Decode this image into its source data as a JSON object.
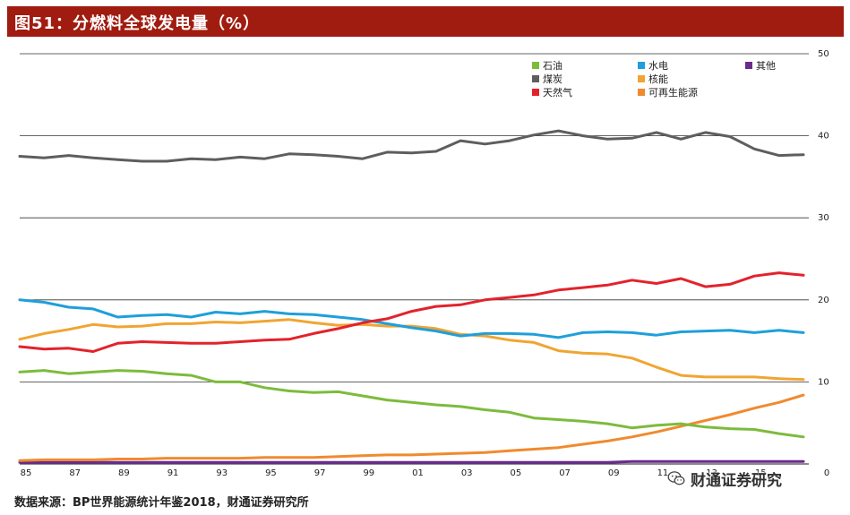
{
  "header": {
    "title": "图51：分燃料全球发电量（%）"
  },
  "source": "数据来源：BP世界能源统计年鉴2018，财通证券研究所",
  "watermark": "财通证券研究",
  "chart_data": {
    "type": "line",
    "title": "图51：分燃料全球发电量（%）",
    "xlabel": "",
    "ylabel": "",
    "ylim": [
      0,
      50
    ],
    "yticks": [
      0,
      10,
      20,
      30,
      40,
      50
    ],
    "y_axis_side": "right",
    "grid": "horizontal",
    "legend_position": "top-right",
    "x": [
      1985,
      1986,
      1987,
      1988,
      1989,
      1990,
      1991,
      1992,
      1993,
      1994,
      1995,
      1996,
      1997,
      1998,
      1999,
      2000,
      2001,
      2002,
      2003,
      2004,
      2005,
      2006,
      2007,
      2008,
      2009,
      2010,
      2011,
      2012,
      2013,
      2014,
      2015,
      2016,
      2017
    ],
    "xtick_labels": [
      "85",
      "87",
      "89",
      "91",
      "93",
      "95",
      "97",
      "99",
      "01",
      "03",
      "05",
      "07",
      "09",
      "11",
      "13",
      "15",
      "0"
    ],
    "series": [
      {
        "name": "石油",
        "color": "#7dbb3c",
        "values": [
          11.2,
          11.4,
          11.0,
          11.2,
          11.4,
          11.3,
          11.0,
          10.8,
          10.0,
          10.0,
          9.3,
          8.9,
          8.7,
          8.8,
          8.3,
          7.8,
          7.5,
          7.2,
          7.0,
          6.6,
          6.3,
          5.6,
          5.4,
          5.2,
          4.9,
          4.4,
          4.7,
          4.9,
          4.5,
          4.3,
          4.2,
          3.7,
          3.3
        ]
      },
      {
        "name": "煤炭",
        "color": "#5e5e5e",
        "values": [
          37.5,
          37.3,
          37.6,
          37.3,
          37.1,
          36.9,
          36.9,
          37.2,
          37.1,
          37.4,
          37.2,
          37.8,
          37.7,
          37.5,
          37.2,
          38.0,
          37.9,
          38.1,
          39.4,
          39.0,
          39.4,
          40.1,
          40.6,
          40.0,
          39.6,
          39.7,
          40.4,
          39.6,
          40.4,
          39.9,
          38.4,
          37.6,
          37.7
        ]
      },
      {
        "name": "天然气",
        "color": "#e3222b",
        "values": [
          14.3,
          14.0,
          14.1,
          13.7,
          14.7,
          14.9,
          14.8,
          14.7,
          14.7,
          14.9,
          15.1,
          15.2,
          15.9,
          16.5,
          17.2,
          17.7,
          18.6,
          19.2,
          19.4,
          20.0,
          20.3,
          20.6,
          21.2,
          21.5,
          21.8,
          22.4,
          22.0,
          22.6,
          21.6,
          21.9,
          22.9,
          23.3,
          23.0
        ]
      },
      {
        "name": "水电",
        "color": "#1f9fd9",
        "values": [
          20.0,
          19.7,
          19.1,
          18.9,
          17.9,
          18.1,
          18.2,
          17.9,
          18.5,
          18.3,
          18.6,
          18.3,
          18.2,
          17.9,
          17.6,
          17.1,
          16.6,
          16.2,
          15.6,
          15.9,
          15.9,
          15.8,
          15.4,
          16.0,
          16.1,
          16.0,
          15.7,
          16.1,
          16.2,
          16.3,
          16.0,
          16.3,
          16.0
        ]
      },
      {
        "name": "核能",
        "color": "#f0a532",
        "values": [
          15.2,
          15.9,
          16.4,
          17.0,
          16.7,
          16.8,
          17.1,
          17.1,
          17.3,
          17.2,
          17.4,
          17.6,
          17.2,
          16.9,
          17.0,
          16.8,
          16.8,
          16.5,
          15.8,
          15.6,
          15.1,
          14.8,
          13.8,
          13.5,
          13.4,
          12.9,
          11.8,
          10.8,
          10.6,
          10.6,
          10.6,
          10.4,
          10.3
        ]
      },
      {
        "name": "可再生能源",
        "color": "#f08a2e",
        "values": [
          0.4,
          0.5,
          0.5,
          0.5,
          0.6,
          0.6,
          0.7,
          0.7,
          0.7,
          0.7,
          0.8,
          0.8,
          0.8,
          0.9,
          1.0,
          1.1,
          1.1,
          1.2,
          1.3,
          1.4,
          1.6,
          1.8,
          2.0,
          2.4,
          2.8,
          3.3,
          3.9,
          4.6,
          5.3,
          6.0,
          6.8,
          7.5,
          8.4
        ]
      },
      {
        "name": "其他",
        "color": "#6a2a8f",
        "values": [
          0.2,
          0.2,
          0.2,
          0.2,
          0.2,
          0.2,
          0.2,
          0.2,
          0.2,
          0.2,
          0.2,
          0.2,
          0.2,
          0.2,
          0.2,
          0.2,
          0.2,
          0.2,
          0.2,
          0.2,
          0.2,
          0.2,
          0.2,
          0.2,
          0.2,
          0.3,
          0.3,
          0.3,
          0.3,
          0.3,
          0.3,
          0.3,
          0.3
        ]
      }
    ],
    "legend": [
      [
        "石油",
        "水电",
        "其他"
      ],
      [
        "煤炭",
        "核能"
      ],
      [
        "天然气",
        "可再生能源"
      ]
    ]
  }
}
